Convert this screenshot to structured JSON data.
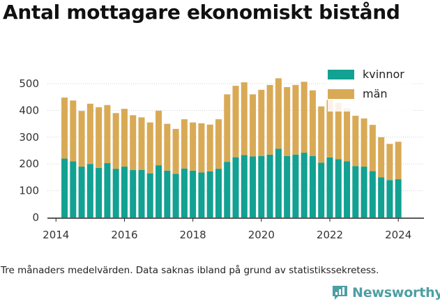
{
  "header": {
    "title": "Antal mottagare ekonomiskt bistånd"
  },
  "footer": {
    "caption": "Tre månaders medelvärden. Data saknas ibland på grund av statistikssekretess.",
    "brand": "Newsworthy"
  },
  "chart_data": {
    "type": "bar",
    "stacked": true,
    "title": "Antal mottagare ekonomiskt bistånd",
    "xlabel": "",
    "ylabel": "",
    "xlim": [
      2013.75,
      2024.75
    ],
    "ylim": [
      0,
      500
    ],
    "yticks": [
      0,
      100,
      200,
      300,
      400,
      500
    ],
    "xticks": [
      2014,
      2016,
      2018,
      2020,
      2022,
      2024
    ],
    "grid": true,
    "legend": "top-right",
    "colors": {
      "kvinnor": "#12a192",
      "man": "#d9aa56"
    },
    "x": [
      2014.25,
      2014.5,
      2014.75,
      2015.0,
      2015.25,
      2015.5,
      2015.75,
      2016.0,
      2016.25,
      2016.5,
      2016.75,
      2017.0,
      2017.25,
      2017.5,
      2017.75,
      2018.0,
      2018.25,
      2018.5,
      2018.75,
      2019.0,
      2019.25,
      2019.5,
      2019.75,
      2020.0,
      2020.25,
      2020.5,
      2020.75,
      2021.0,
      2021.25,
      2021.5,
      2021.75,
      2022.0,
      2022.25,
      2022.5,
      2022.75,
      2023.0,
      2023.25,
      2023.5,
      2023.75,
      2024.0
    ],
    "series": [
      {
        "name": "kvinnor",
        "values": [
          220,
          210,
          190,
          200,
          185,
          203,
          182,
          190,
          177,
          178,
          165,
          195,
          175,
          163,
          183,
          175,
          168,
          172,
          182,
          208,
          225,
          233,
          228,
          230,
          235,
          257,
          230,
          235,
          242,
          230,
          205,
          224,
          218,
          210,
          192,
          190,
          173,
          150,
          140,
          143
        ]
      },
      {
        "name": "män",
        "values": [
          228,
          227,
          208,
          225,
          227,
          217,
          208,
          216,
          205,
          196,
          190,
          204,
          175,
          168,
          184,
          180,
          184,
          175,
          185,
          252,
          267,
          272,
          232,
          247,
          260,
          263,
          257,
          260,
          265,
          245,
          210,
          215,
          210,
          198,
          188,
          180,
          173,
          150,
          135,
          140
        ]
      }
    ]
  }
}
